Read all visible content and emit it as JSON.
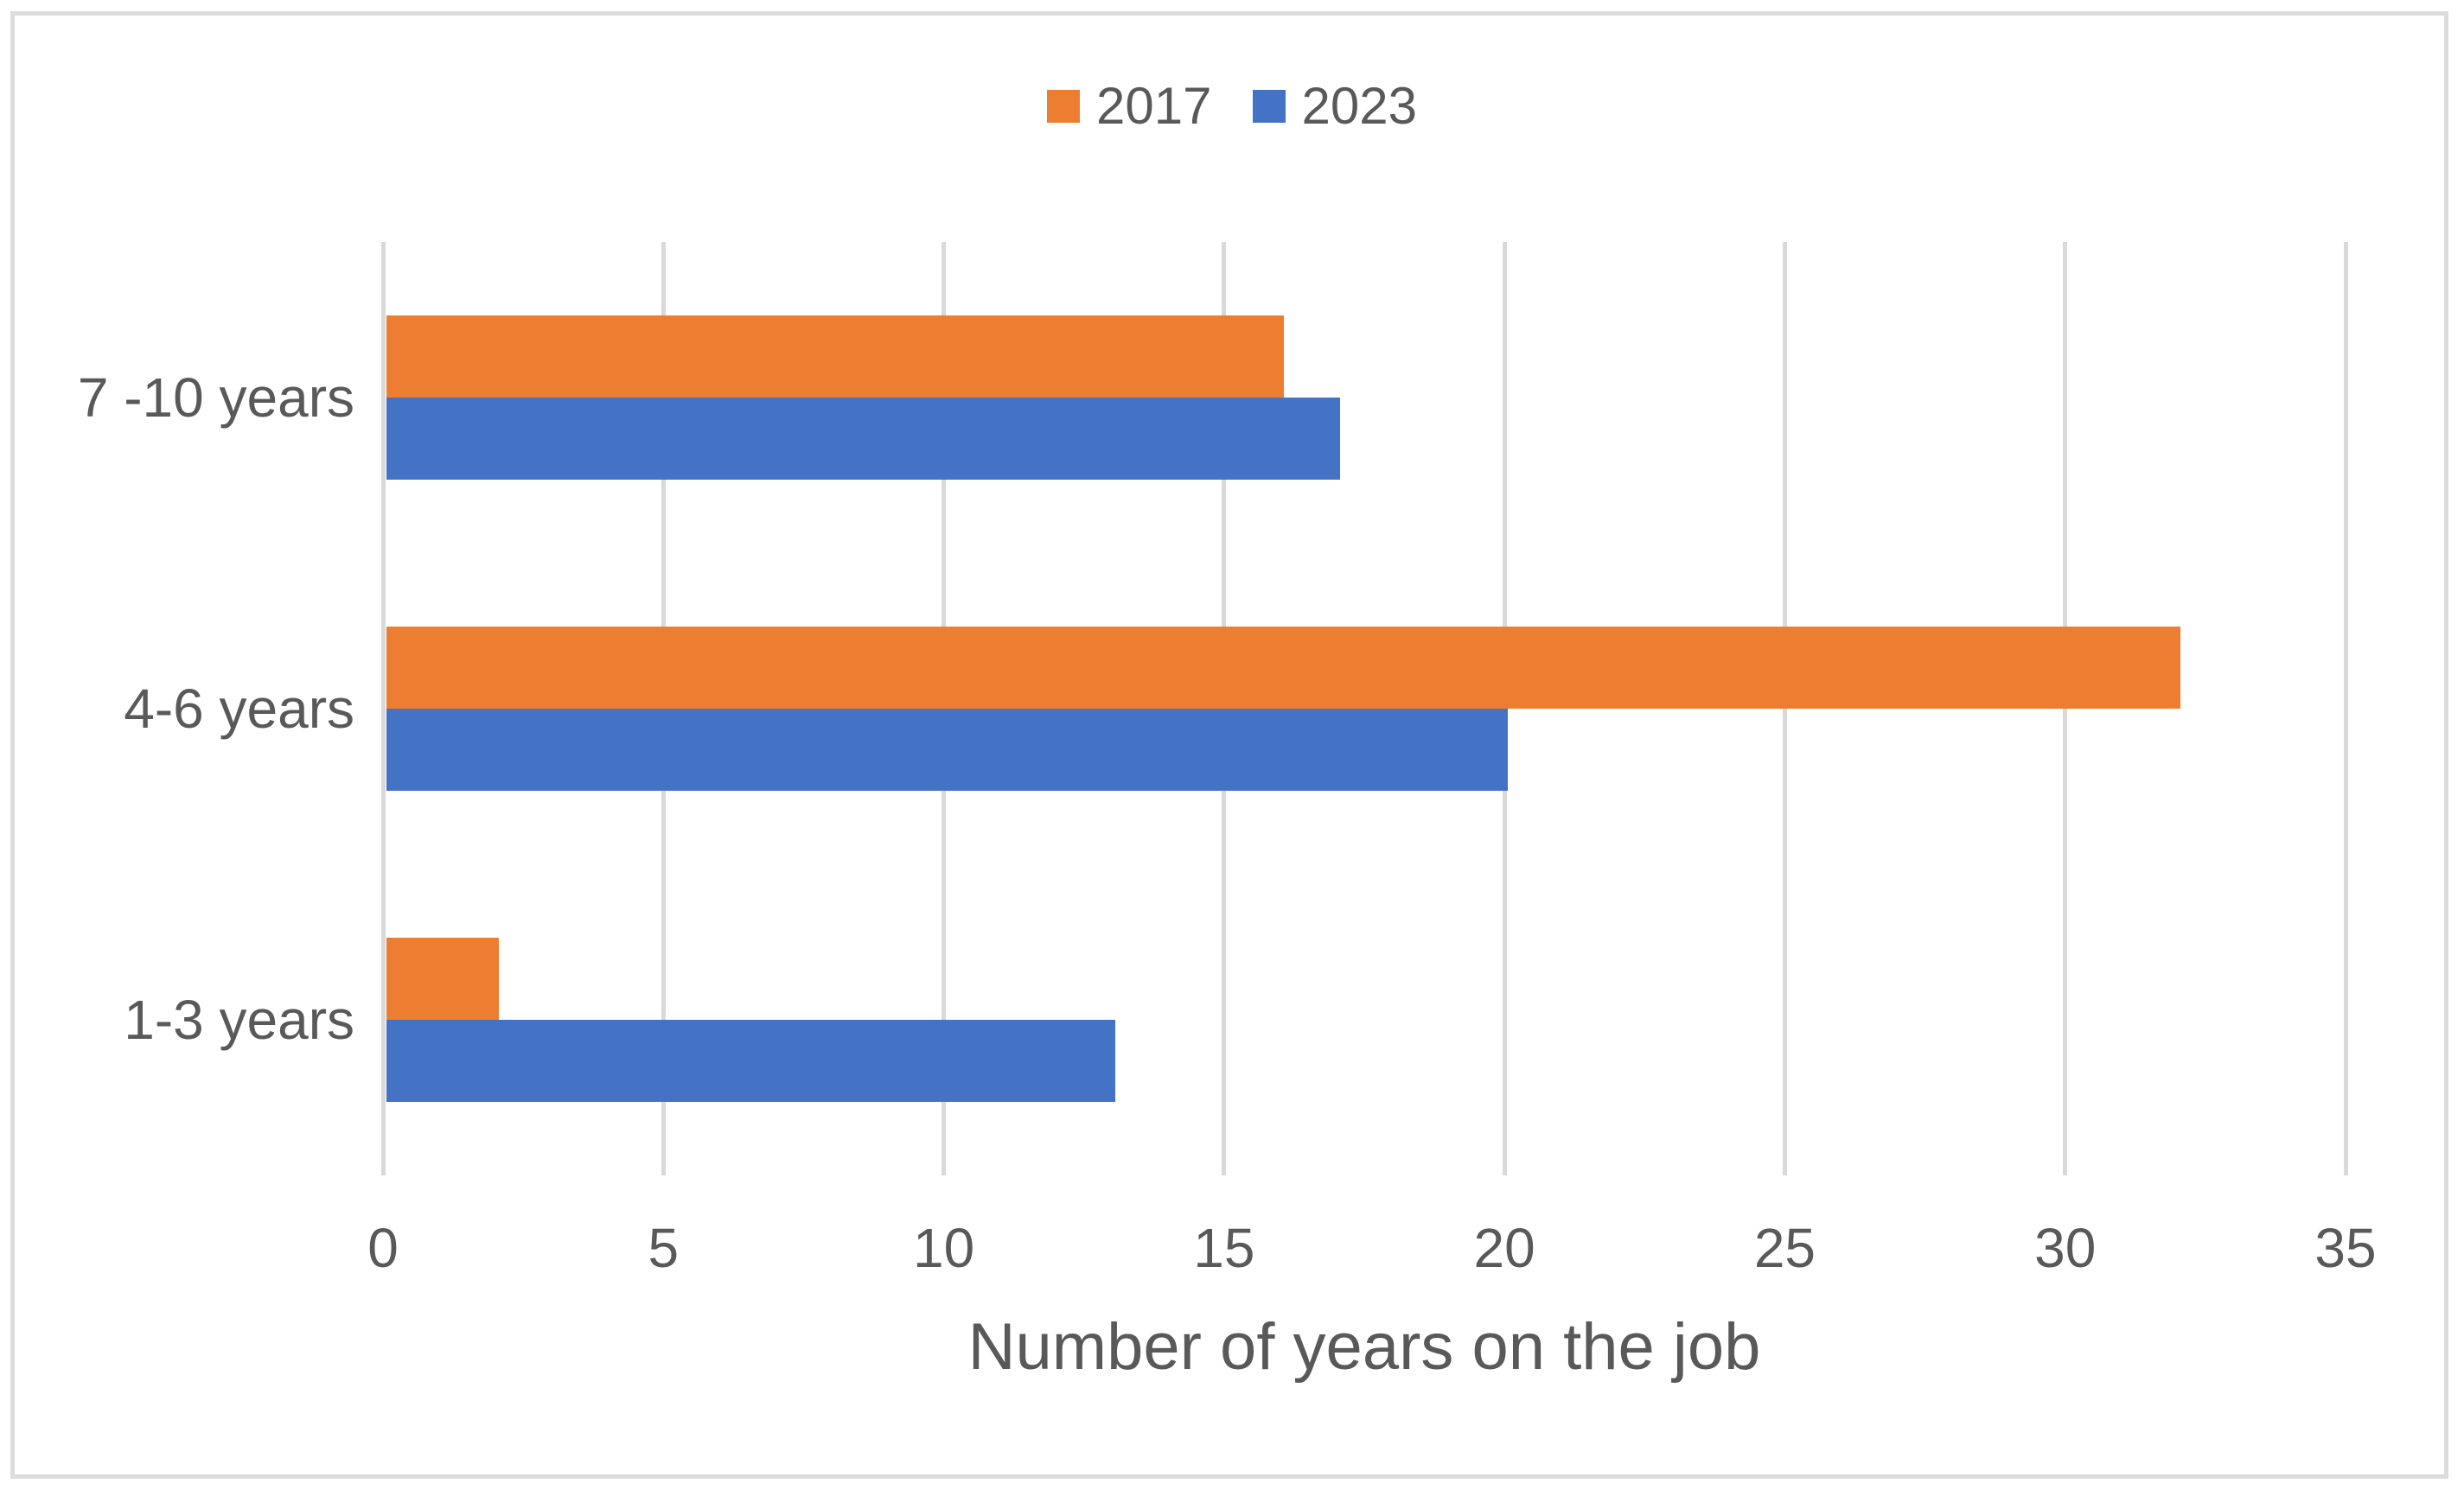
{
  "chart_data": {
    "type": "bar",
    "orientation": "horizontal",
    "title": "",
    "xlabel": "Number of years on the job",
    "ylabel": "",
    "categories": [
      "7 -10 years",
      "4-6 years",
      "1-3 years"
    ],
    "series": [
      {
        "name": "2017",
        "color": "#ED7D31",
        "values": [
          16,
          32,
          2
        ]
      },
      {
        "name": "2023",
        "color": "#4472C4",
        "values": [
          17,
          20,
          13
        ]
      }
    ],
    "xlim": [
      0,
      35
    ],
    "xticks": [
      0,
      5,
      10,
      15,
      20,
      25,
      30,
      35
    ],
    "grid": "vertical-gridlines",
    "gridline_color": "#D9D9D9",
    "text_color": "#595959",
    "frame_border_color": "#DCDCDC",
    "legend_position": "top-center"
  }
}
